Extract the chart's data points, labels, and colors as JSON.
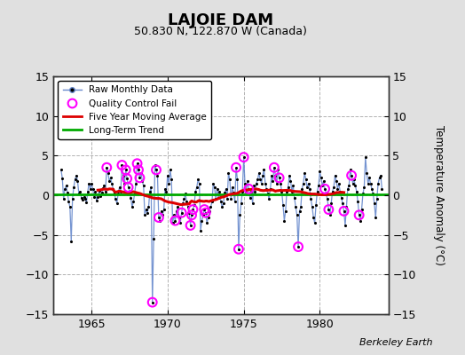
{
  "title": "LAJOIE DAM",
  "subtitle": "50.830 N, 122.870 W (Canada)",
  "ylabel": "Temperature Anomaly (°C)",
  "credit": "Berkeley Earth",
  "ylim": [
    -15,
    15
  ],
  "xlim": [
    1962.5,
    1984.5
  ],
  "yticks": [
    -15,
    -10,
    -5,
    0,
    5,
    10,
    15
  ],
  "xticks": [
    1965,
    1970,
    1975,
    1980
  ],
  "bg_color": "#e0e0e0",
  "plot_bg_color": "#ffffff",
  "grid_color": "#aaaaaa",
  "monthly_line_color": "#6688cc",
  "monthly_dot_color": "#000000",
  "qc_fail_color": "#ff00ff",
  "moving_avg_color": "#dd0000",
  "trend_color": "#00aa00",
  "raw_data": [
    [
      1963.0,
      3.2
    ],
    [
      1963.083,
      2.1
    ],
    [
      1963.167,
      -0.5
    ],
    [
      1963.25,
      0.8
    ],
    [
      1963.333,
      1.2
    ],
    [
      1963.417,
      0.3
    ],
    [
      1963.5,
      -0.8
    ],
    [
      1963.583,
      -1.5
    ],
    [
      1963.667,
      -5.8
    ],
    [
      1963.75,
      -0.4
    ],
    [
      1963.833,
      1.0
    ],
    [
      1963.917,
      2.0
    ],
    [
      1964.0,
      2.5
    ],
    [
      1964.083,
      1.8
    ],
    [
      1964.167,
      0.2
    ],
    [
      1964.25,
      0.5
    ],
    [
      1964.333,
      -0.3
    ],
    [
      1964.417,
      -0.6
    ],
    [
      1964.5,
      -0.2
    ],
    [
      1964.583,
      -0.5
    ],
    [
      1964.667,
      -0.9
    ],
    [
      1964.75,
      0.4
    ],
    [
      1964.833,
      1.5
    ],
    [
      1964.917,
      0.8
    ],
    [
      1965.0,
      1.5
    ],
    [
      1965.083,
      0.8
    ],
    [
      1965.167,
      -0.2
    ],
    [
      1965.25,
      0.4
    ],
    [
      1965.333,
      -0.7
    ],
    [
      1965.417,
      -0.2
    ],
    [
      1965.5,
      0.6
    ],
    [
      1965.583,
      -0.1
    ],
    [
      1965.667,
      0.3
    ],
    [
      1965.75,
      0.9
    ],
    [
      1965.833,
      1.2
    ],
    [
      1965.917,
      0.5
    ],
    [
      1966.0,
      3.5
    ],
    [
      1966.083,
      2.8
    ],
    [
      1966.167,
      1.8
    ],
    [
      1966.25,
      2.2
    ],
    [
      1966.333,
      1.5
    ],
    [
      1966.417,
      0.8
    ],
    [
      1966.5,
      0.3
    ],
    [
      1966.583,
      -0.5
    ],
    [
      1966.667,
      -1.0
    ],
    [
      1966.75,
      0.2
    ],
    [
      1966.833,
      1.0
    ],
    [
      1966.917,
      0.5
    ],
    [
      1967.0,
      3.8
    ],
    [
      1967.083,
      2.5
    ],
    [
      1967.167,
      1.5
    ],
    [
      1967.25,
      3.2
    ],
    [
      1967.333,
      2.1
    ],
    [
      1967.417,
      1.0
    ],
    [
      1967.5,
      0.5
    ],
    [
      1967.583,
      -0.3
    ],
    [
      1967.667,
      -1.5
    ],
    [
      1967.75,
      -0.8
    ],
    [
      1967.833,
      0.2
    ],
    [
      1967.917,
      1.5
    ],
    [
      1968.0,
      4.0
    ],
    [
      1968.083,
      3.2
    ],
    [
      1968.167,
      2.2
    ],
    [
      1968.25,
      2.8
    ],
    [
      1968.333,
      1.8
    ],
    [
      1968.417,
      1.2
    ],
    [
      1968.5,
      -2.5
    ],
    [
      1968.583,
      -1.8
    ],
    [
      1968.667,
      -2.2
    ],
    [
      1968.75,
      -1.5
    ],
    [
      1968.833,
      0.5
    ],
    [
      1968.917,
      1.0
    ],
    [
      1969.0,
      -13.5
    ],
    [
      1969.083,
      -5.5
    ],
    [
      1969.167,
      3.8
    ],
    [
      1969.25,
      3.2
    ],
    [
      1969.333,
      2.5
    ],
    [
      1969.417,
      -2.8
    ],
    [
      1969.5,
      -3.2
    ],
    [
      1969.583,
      -2.0
    ],
    [
      1969.667,
      -2.5
    ],
    [
      1969.75,
      -1.8
    ],
    [
      1969.833,
      0.8
    ],
    [
      1969.917,
      0.5
    ],
    [
      1970.0,
      2.5
    ],
    [
      1970.083,
      1.5
    ],
    [
      1970.167,
      3.2
    ],
    [
      1970.25,
      2.0
    ],
    [
      1970.333,
      -3.5
    ],
    [
      1970.417,
      -2.5
    ],
    [
      1970.5,
      -3.2
    ],
    [
      1970.583,
      -2.0
    ],
    [
      1970.667,
      -1.5
    ],
    [
      1970.75,
      -2.8
    ],
    [
      1970.833,
      -3.5
    ],
    [
      1970.917,
      -2.2
    ],
    [
      1971.0,
      -1.0
    ],
    [
      1971.083,
      -0.5
    ],
    [
      1971.167,
      0.2
    ],
    [
      1971.25,
      -0.8
    ],
    [
      1971.333,
      -1.5
    ],
    [
      1971.417,
      -2.2
    ],
    [
      1971.5,
      -3.8
    ],
    [
      1971.583,
      -2.5
    ],
    [
      1971.667,
      -1.8
    ],
    [
      1971.75,
      -1.2
    ],
    [
      1971.833,
      0.5
    ],
    [
      1971.917,
      1.0
    ],
    [
      1972.0,
      2.0
    ],
    [
      1972.083,
      1.5
    ],
    [
      1972.167,
      -4.5
    ],
    [
      1972.25,
      -3.2
    ],
    [
      1972.333,
      -2.5
    ],
    [
      1972.417,
      -1.8
    ],
    [
      1972.5,
      -2.2
    ],
    [
      1972.583,
      -3.5
    ],
    [
      1972.667,
      -2.8
    ],
    [
      1972.75,
      -2.0
    ],
    [
      1972.833,
      -1.5
    ],
    [
      1972.917,
      -0.8
    ],
    [
      1973.0,
      1.5
    ],
    [
      1973.083,
      1.0
    ],
    [
      1973.167,
      -0.5
    ],
    [
      1973.25,
      0.8
    ],
    [
      1973.333,
      -0.3
    ],
    [
      1973.417,
      0.5
    ],
    [
      1973.5,
      -0.8
    ],
    [
      1973.583,
      -1.5
    ],
    [
      1973.667,
      -1.0
    ],
    [
      1973.75,
      0.3
    ],
    [
      1973.833,
      0.8
    ],
    [
      1973.917,
      -0.5
    ],
    [
      1974.0,
      2.8
    ],
    [
      1974.083,
      2.0
    ],
    [
      1974.167,
      -0.5
    ],
    [
      1974.25,
      1.0
    ],
    [
      1974.333,
      0.3
    ],
    [
      1974.417,
      -0.8
    ],
    [
      1974.5,
      3.5
    ],
    [
      1974.583,
      2.0
    ],
    [
      1974.667,
      -6.8
    ],
    [
      1974.75,
      -2.5
    ],
    [
      1974.833,
      -1.0
    ],
    [
      1974.917,
      0.5
    ],
    [
      1975.0,
      4.8
    ],
    [
      1975.083,
      1.5
    ],
    [
      1975.167,
      0.5
    ],
    [
      1975.25,
      1.8
    ],
    [
      1975.333,
      0.8
    ],
    [
      1975.417,
      -0.3
    ],
    [
      1975.5,
      0.5
    ],
    [
      1975.583,
      -1.0
    ],
    [
      1975.667,
      1.2
    ],
    [
      1975.75,
      0.5
    ],
    [
      1975.833,
      1.5
    ],
    [
      1975.917,
      2.0
    ],
    [
      1976.0,
      2.8
    ],
    [
      1976.083,
      2.0
    ],
    [
      1976.167,
      1.5
    ],
    [
      1976.25,
      2.5
    ],
    [
      1976.333,
      3.2
    ],
    [
      1976.417,
      1.5
    ],
    [
      1976.5,
      0.8
    ],
    [
      1976.583,
      0.2
    ],
    [
      1976.667,
      -0.5
    ],
    [
      1976.75,
      0.8
    ],
    [
      1976.833,
      2.5
    ],
    [
      1976.917,
      1.8
    ],
    [
      1977.0,
      3.5
    ],
    [
      1977.083,
      2.5
    ],
    [
      1977.167,
      1.5
    ],
    [
      1977.25,
      3.2
    ],
    [
      1977.333,
      2.2
    ],
    [
      1977.417,
      1.5
    ],
    [
      1977.5,
      0.5
    ],
    [
      1977.583,
      -1.2
    ],
    [
      1977.667,
      -3.2
    ],
    [
      1977.75,
      -2.0
    ],
    [
      1977.833,
      0.5
    ],
    [
      1977.917,
      1.0
    ],
    [
      1978.0,
      2.5
    ],
    [
      1978.083,
      1.8
    ],
    [
      1978.167,
      0.5
    ],
    [
      1978.25,
      1.2
    ],
    [
      1978.333,
      -0.3
    ],
    [
      1978.417,
      -1.5
    ],
    [
      1978.5,
      -2.5
    ],
    [
      1978.583,
      -6.5
    ],
    [
      1978.667,
      -2.0
    ],
    [
      1978.75,
      -1.5
    ],
    [
      1978.833,
      0.8
    ],
    [
      1978.917,
      1.5
    ],
    [
      1979.0,
      2.8
    ],
    [
      1979.083,
      2.0
    ],
    [
      1979.167,
      1.0
    ],
    [
      1979.25,
      1.5
    ],
    [
      1979.333,
      0.8
    ],
    [
      1979.417,
      -0.5
    ],
    [
      1979.5,
      -1.5
    ],
    [
      1979.583,
      -2.8
    ],
    [
      1979.667,
      -3.5
    ],
    [
      1979.75,
      -1.2
    ],
    [
      1979.833,
      0.5
    ],
    [
      1979.917,
      1.2
    ],
    [
      1980.0,
      3.0
    ],
    [
      1980.083,
      2.2
    ],
    [
      1980.167,
      1.2
    ],
    [
      1980.25,
      1.8
    ],
    [
      1980.333,
      0.8
    ],
    [
      1980.417,
      0.2
    ],
    [
      1980.5,
      -0.5
    ],
    [
      1980.583,
      -1.8
    ],
    [
      1980.667,
      -2.5
    ],
    [
      1980.75,
      -1.0
    ],
    [
      1980.833,
      0.5
    ],
    [
      1980.917,
      1.0
    ],
    [
      1981.0,
      2.5
    ],
    [
      1981.083,
      1.8
    ],
    [
      1981.167,
      0.8
    ],
    [
      1981.25,
      1.5
    ],
    [
      1981.333,
      0.5
    ],
    [
      1981.417,
      -0.3
    ],
    [
      1981.5,
      -1.0
    ],
    [
      1981.583,
      -2.0
    ],
    [
      1981.667,
      -3.8
    ],
    [
      1981.75,
      -1.5
    ],
    [
      1981.833,
      0.8
    ],
    [
      1981.917,
      1.2
    ],
    [
      1982.0,
      3.2
    ],
    [
      1982.083,
      2.5
    ],
    [
      1982.167,
      1.5
    ],
    [
      1982.25,
      2.0
    ],
    [
      1982.333,
      1.2
    ],
    [
      1982.417,
      0.5
    ],
    [
      1982.5,
      -0.8
    ],
    [
      1982.583,
      -2.5
    ],
    [
      1982.667,
      -3.2
    ],
    [
      1982.75,
      -1.8
    ],
    [
      1982.833,
      0.2
    ],
    [
      1982.917,
      1.0
    ],
    [
      1983.0,
      4.8
    ],
    [
      1983.083,
      2.8
    ],
    [
      1983.167,
      1.5
    ],
    [
      1983.25,
      2.2
    ],
    [
      1983.333,
      1.5
    ],
    [
      1983.417,
      0.8
    ],
    [
      1983.5,
      0.2
    ],
    [
      1983.583,
      -1.0
    ],
    [
      1983.667,
      -2.8
    ],
    [
      1983.75,
      -0.5
    ],
    [
      1983.833,
      1.5
    ],
    [
      1983.917,
      2.2
    ],
    [
      1984.0,
      2.5
    ],
    [
      1984.083,
      0.8
    ]
  ],
  "qc_fail_times": [
    1966.0,
    1967.0,
    1967.25,
    1967.333,
    1967.417,
    1968.0,
    1968.083,
    1968.167,
    1969.0,
    1969.25,
    1969.417,
    1970.5,
    1970.917,
    1971.5,
    1971.583,
    1971.667,
    1972.417,
    1972.5,
    1974.5,
    1974.667,
    1975.0,
    1975.333,
    1977.0,
    1977.333,
    1978.583,
    1980.333,
    1980.583,
    1981.583,
    1982.083,
    1982.583
  ]
}
